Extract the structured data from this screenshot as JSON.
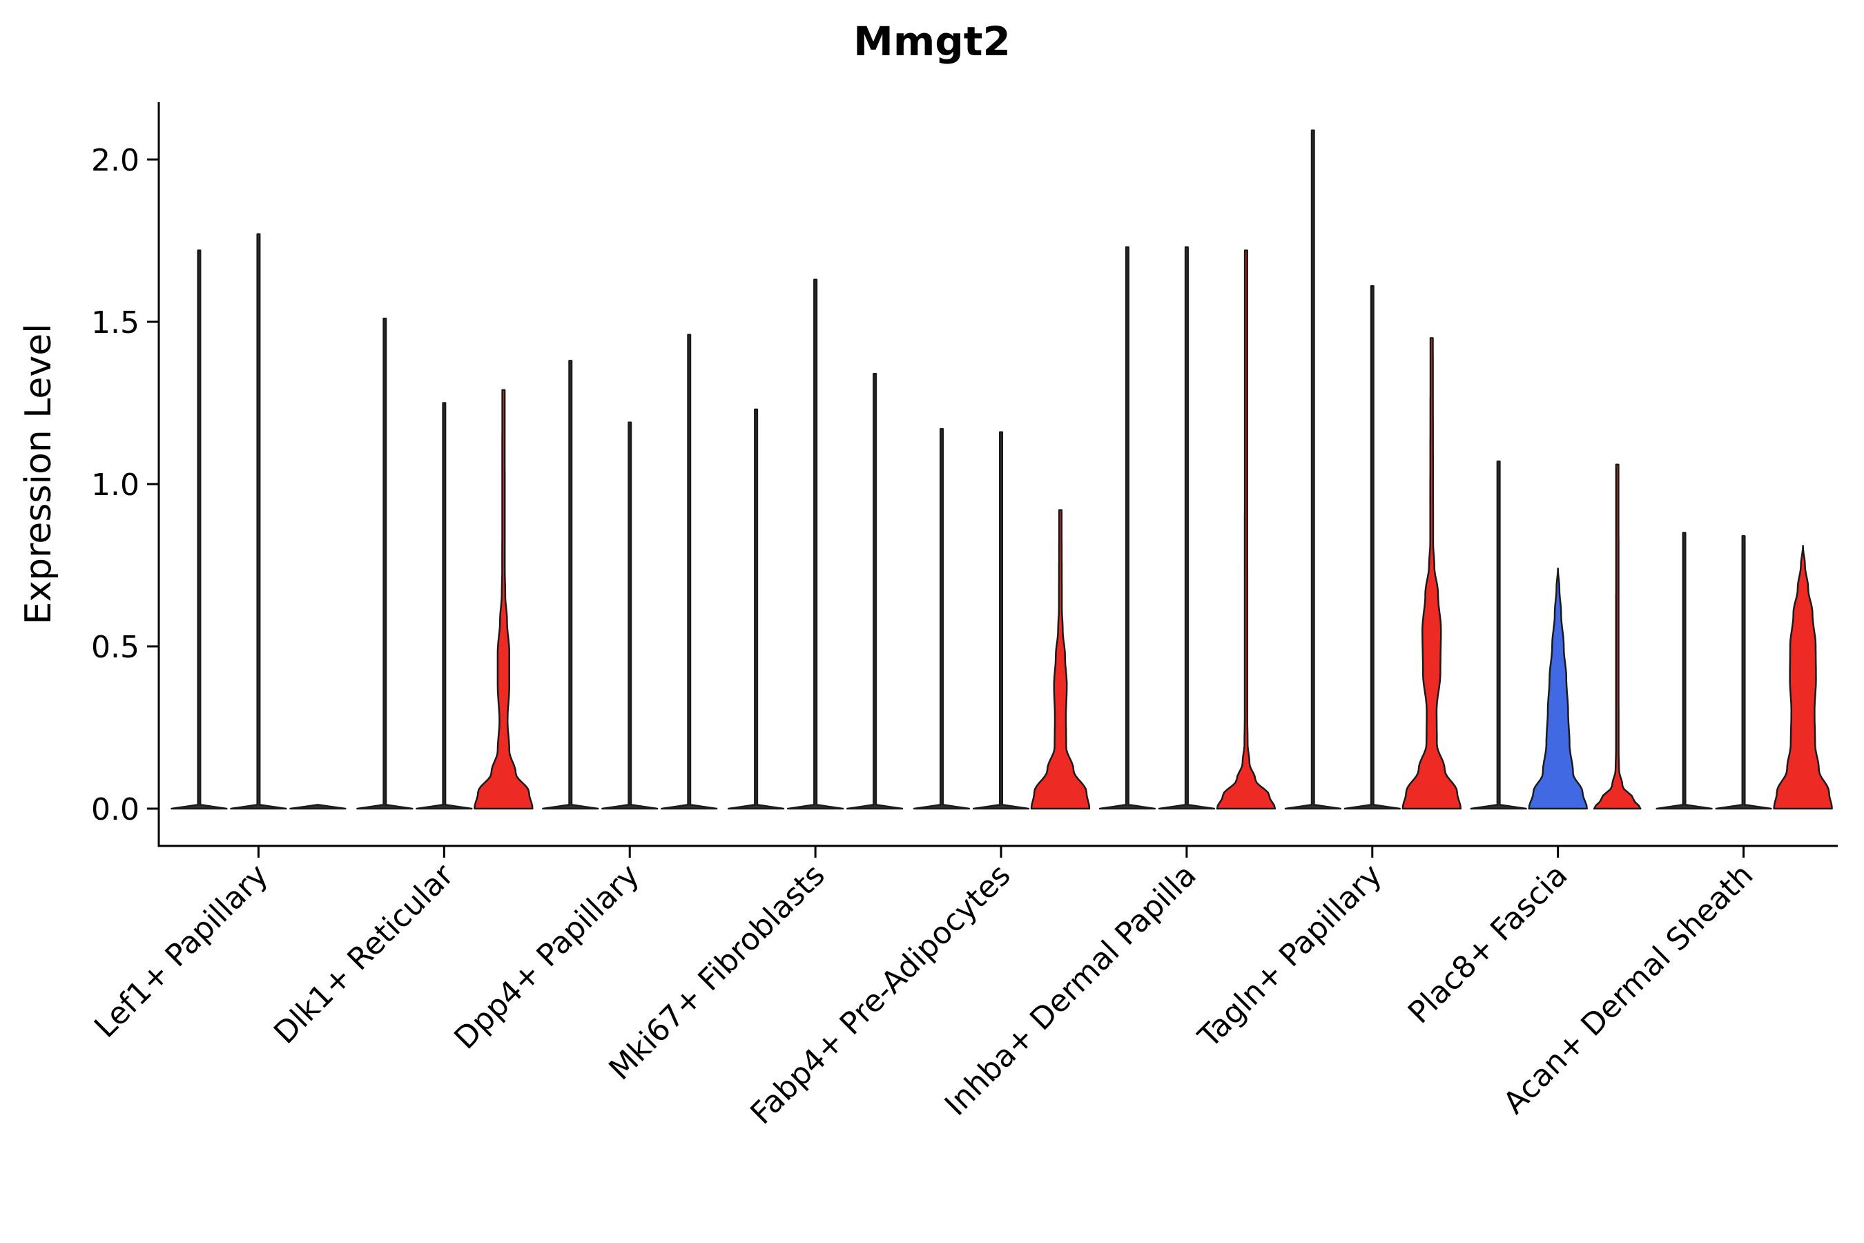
{
  "title": "Mmgt2",
  "ylabel": "Expression Level",
  "palette": {
    "black": "#303030",
    "red": "#ED2B24",
    "blue": "#4169E1"
  },
  "axis": {
    "ytick_values": [
      0,
      0.5,
      1,
      1.5,
      2
    ],
    "ytick_labels": [
      "0.0",
      "0.5",
      "1.0",
      "1.5",
      "2.0"
    ]
  },
  "chart_data": {
    "type": "violin",
    "title": "Mmgt2",
    "xlabel": "",
    "ylabel": "Expression Level",
    "ylim": [
      -0.12,
      2.18
    ],
    "yticks": [
      0,
      0.5,
      1,
      1.5,
      2
    ],
    "grid": false,
    "legend": "none",
    "violins_per_category": 3,
    "categories": [
      "Lef1+ Papillary",
      "Dlk1+ Reticular",
      "Dpp4+ Papillary",
      "Mki67+ Fibroblasts",
      "Fabp4+ Pre-Adipocytes",
      "Inhba+ Dermal Papilla",
      "Tagln+ Papillary",
      "Plac8+ Fascia",
      "Acan+ Dermal Sheath"
    ],
    "groups": [
      {
        "category": "Lef1+ Papillary",
        "violins": [
          {
            "split_index": 1,
            "shape": "spike",
            "max": 1.72,
            "color": "black"
          },
          {
            "split_index": 2,
            "shape": "spike",
            "max": 1.77,
            "color": "black"
          },
          {
            "split_index": 3,
            "shape": "flat",
            "max": 0.0,
            "color": "black"
          }
        ]
      },
      {
        "category": "Dlk1+ Reticular",
        "violins": [
          {
            "split_index": 1,
            "shape": "spike",
            "max": 1.51,
            "color": "black"
          },
          {
            "split_index": 2,
            "shape": "spike",
            "max": 1.25,
            "color": "black"
          },
          {
            "split_index": 3,
            "shape": "body",
            "max": 1.29,
            "color": "red",
            "profile": [
              [
                0,
                1.0
              ],
              [
                0.05,
                0.88
              ],
              [
                0.11,
                0.42
              ],
              [
                0.18,
                0.2
              ],
              [
                0.27,
                0.14
              ],
              [
                0.38,
                0.2
              ],
              [
                0.48,
                0.2
              ],
              [
                0.58,
                0.12
              ],
              [
                0.66,
                0.06
              ],
              [
                0.74,
                0.045
              ],
              [
                1.29,
                0.042
              ]
            ]
          }
        ]
      },
      {
        "category": "Dpp4+ Papillary",
        "violins": [
          {
            "split_index": 1,
            "shape": "spike",
            "max": 1.38,
            "color": "black"
          },
          {
            "split_index": 2,
            "shape": "spike",
            "max": 1.19,
            "color": "black"
          },
          {
            "split_index": 3,
            "shape": "spike",
            "max": 1.46,
            "color": "black"
          }
        ]
      },
      {
        "category": "Mki67+ Fibroblasts",
        "violins": [
          {
            "split_index": 1,
            "shape": "spike",
            "max": 1.23,
            "color": "black"
          },
          {
            "split_index": 2,
            "shape": "spike",
            "max": 1.63,
            "color": "black"
          },
          {
            "split_index": 3,
            "shape": "spike",
            "max": 1.34,
            "color": "black"
          }
        ]
      },
      {
        "category": "Fabp4+ Pre-Adipocytes",
        "violins": [
          {
            "split_index": 1,
            "shape": "spike",
            "max": 1.17,
            "color": "black"
          },
          {
            "split_index": 2,
            "shape": "spike",
            "max": 1.16,
            "color": "black"
          },
          {
            "split_index": 3,
            "shape": "body",
            "max": 0.92,
            "color": "red",
            "profile": [
              [
                0,
                1.0
              ],
              [
                0.05,
                0.9
              ],
              [
                0.12,
                0.45
              ],
              [
                0.19,
                0.2
              ],
              [
                0.28,
                0.19
              ],
              [
                0.38,
                0.22
              ],
              [
                0.47,
                0.16
              ],
              [
                0.55,
                0.08
              ],
              [
                0.62,
                0.05
              ],
              [
                0.92,
                0.042
              ]
            ]
          }
        ]
      },
      {
        "category": "Inhba+ Dermal Papilla",
        "violins": [
          {
            "split_index": 1,
            "shape": "spike",
            "max": 1.73,
            "color": "black"
          },
          {
            "split_index": 2,
            "shape": "spike",
            "max": 1.73,
            "color": "black"
          },
          {
            "split_index": 3,
            "shape": "body",
            "max": 1.72,
            "color": "red",
            "profile": [
              [
                0,
                1.0
              ],
              [
                0.04,
                0.8
              ],
              [
                0.09,
                0.32
              ],
              [
                0.14,
                0.12
              ],
              [
                0.2,
                0.055
              ],
              [
                0.28,
                0.045
              ],
              [
                1.72,
                0.042
              ]
            ]
          }
        ]
      },
      {
        "category": "Tagln+ Papillary",
        "violins": [
          {
            "split_index": 1,
            "shape": "spike",
            "max": 2.09,
            "color": "black"
          },
          {
            "split_index": 2,
            "shape": "spike",
            "max": 1.61,
            "color": "black"
          },
          {
            "split_index": 3,
            "shape": "body",
            "max": 1.45,
            "color": "red",
            "profile": [
              [
                0,
                1.0
              ],
              [
                0.05,
                0.88
              ],
              [
                0.12,
                0.45
              ],
              [
                0.2,
                0.18
              ],
              [
                0.3,
                0.17
              ],
              [
                0.42,
                0.3
              ],
              [
                0.55,
                0.32
              ],
              [
                0.66,
                0.22
              ],
              [
                0.75,
                0.09
              ],
              [
                0.82,
                0.05
              ],
              [
                1.45,
                0.042
              ]
            ]
          }
        ]
      },
      {
        "category": "Plac8+ Fascia",
        "violins": [
          {
            "split_index": 1,
            "shape": "spike",
            "max": 1.07,
            "color": "black"
          },
          {
            "split_index": 2,
            "shape": "body",
            "max": 0.74,
            "color": "blue",
            "profile": [
              [
                0,
                1.0
              ],
              [
                0.05,
                0.85
              ],
              [
                0.11,
                0.52
              ],
              [
                0.2,
                0.4
              ],
              [
                0.3,
                0.35
              ],
              [
                0.4,
                0.29
              ],
              [
                0.5,
                0.2
              ],
              [
                0.6,
                0.11
              ],
              [
                0.68,
                0.05
              ],
              [
                0.74,
                0.0
              ]
            ]
          },
          {
            "split_index": 3,
            "shape": "body",
            "max": 1.06,
            "color": "red",
            "profile": [
              [
                0,
                0.8
              ],
              [
                0.03,
                0.55
              ],
              [
                0.07,
                0.18
              ],
              [
                0.12,
                0.06
              ],
              [
                0.18,
                0.045
              ],
              [
                1.06,
                0.042
              ]
            ]
          }
        ]
      },
      {
        "category": "Acan+ Dermal Sheath",
        "violins": [
          {
            "split_index": 1,
            "shape": "spike",
            "max": 0.85,
            "color": "black"
          },
          {
            "split_index": 2,
            "shape": "spike",
            "max": 0.84,
            "color": "black"
          },
          {
            "split_index": 3,
            "shape": "body",
            "max": 0.81,
            "color": "red",
            "profile": [
              [
                0,
                1.0
              ],
              [
                0.05,
                0.9
              ],
              [
                0.12,
                0.55
              ],
              [
                0.2,
                0.42
              ],
              [
                0.3,
                0.4
              ],
              [
                0.4,
                0.45
              ],
              [
                0.5,
                0.44
              ],
              [
                0.6,
                0.33
              ],
              [
                0.68,
                0.18
              ],
              [
                0.75,
                0.07
              ],
              [
                0.81,
                0.0
              ]
            ]
          }
        ]
      }
    ]
  }
}
